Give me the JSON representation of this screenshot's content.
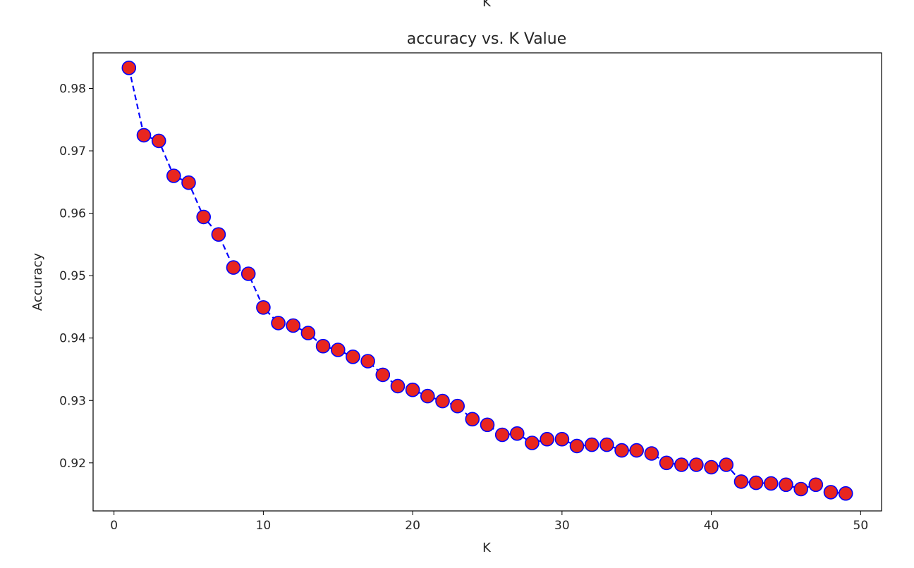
{
  "chart_data": {
    "type": "line",
    "title": "accuracy vs. K Value",
    "header_text": "K",
    "xlabel": "K",
    "ylabel": "Accuracy",
    "xlim": [
      -1.4,
      51.4
    ],
    "ylim": [
      0.9123,
      0.9857
    ],
    "x_ticks": [
      0,
      10,
      20,
      30,
      40,
      50
    ],
    "y_ticks": [
      0.92,
      0.93,
      0.94,
      0.95,
      0.96,
      0.97,
      0.98
    ],
    "y_tick_labels": [
      "0.92",
      "0.93",
      "0.94",
      "0.95",
      "0.96",
      "0.97",
      "0.98"
    ],
    "grid": false,
    "series": [
      {
        "line_color": "#0000ff",
        "line_style": "dashed",
        "marker": "circle",
        "marker_face_color": "#e8261f",
        "marker_edge_color": "#0000ff",
        "x": [
          1,
          2,
          3,
          4,
          5,
          6,
          7,
          8,
          9,
          10,
          11,
          12,
          13,
          14,
          15,
          16,
          17,
          18,
          19,
          20,
          21,
          22,
          23,
          24,
          25,
          26,
          27,
          28,
          29,
          30,
          31,
          32,
          33,
          34,
          35,
          36,
          37,
          38,
          39,
          40,
          41,
          42,
          43,
          44,
          45,
          46,
          47,
          48,
          49
        ],
        "values": [
          0.9833,
          0.9725,
          0.9716,
          0.966,
          0.9649,
          0.9594,
          0.9566,
          0.9513,
          0.9503,
          0.9449,
          0.9424,
          0.942,
          0.9408,
          0.9387,
          0.9381,
          0.937,
          0.9363,
          0.9341,
          0.9323,
          0.9317,
          0.9307,
          0.9299,
          0.9291,
          0.927,
          0.9261,
          0.9245,
          0.9247,
          0.9232,
          0.9238,
          0.9238,
          0.9227,
          0.9229,
          0.9229,
          0.922,
          0.922,
          0.9215,
          0.92,
          0.9197,
          0.9197,
          0.9193,
          0.9197,
          0.917,
          0.9168,
          0.9167,
          0.9165,
          0.9158,
          0.9165,
          0.9153,
          0.9151
        ]
      }
    ]
  }
}
